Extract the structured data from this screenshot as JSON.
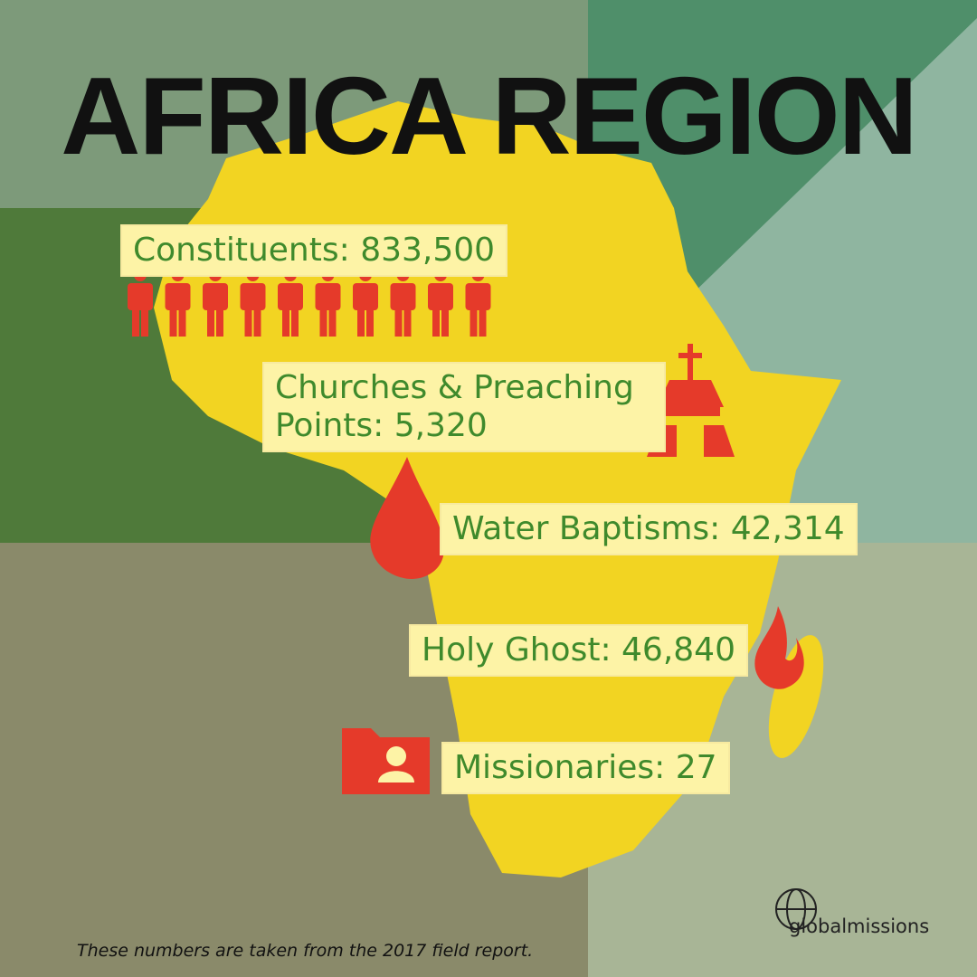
{
  "header": {
    "title": "AFRICA REGION"
  },
  "stats": [
    {
      "lines": [
        "Constituents: 833,500"
      ]
    },
    {
      "lines": [
        "Churches & Preaching",
        "Points: 5,320"
      ]
    },
    {
      "lines": [
        "Water Baptisms: 42,314"
      ]
    },
    {
      "lines": [
        "Holy Ghost: 46,840"
      ]
    },
    {
      "lines": [
        "Missionaries: 27"
      ]
    }
  ],
  "footer": {
    "note": "These numbers are taken from the 2017 field report.",
    "logo": "globalmissions"
  }
}
